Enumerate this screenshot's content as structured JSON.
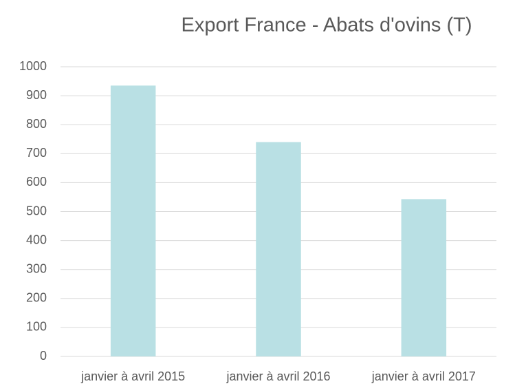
{
  "chart_data": {
    "type": "bar",
    "title": "Export France - Abats d'ovins (T)",
    "categories": [
      "janvier à avril 2015",
      "janvier à avril 2016",
      "janvier à avril 2017"
    ],
    "values": [
      935,
      740,
      543
    ],
    "color": "#b9e0e4",
    "ylim": [
      0,
      1000
    ],
    "yticks": [
      0,
      100,
      200,
      300,
      400,
      500,
      600,
      700,
      800,
      900,
      1000
    ],
    "grid": true
  }
}
